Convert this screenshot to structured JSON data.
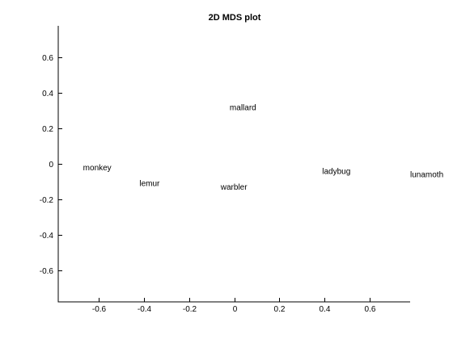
{
  "chart_data": {
    "type": "scatter",
    "title": "2D MDS plot",
    "xlabel": "",
    "ylabel": "",
    "xlim": [
      -0.78,
      0.78
    ],
    "ylim": [
      -0.78,
      0.78
    ],
    "xticks": [
      -0.6,
      -0.4,
      -0.2,
      0,
      0.2,
      0.4,
      0.6
    ],
    "yticks": [
      -0.6,
      -0.4,
      -0.2,
      0,
      0.2,
      0.4,
      0.6
    ],
    "xtick_labels": [
      "-0.6",
      "-0.4",
      "-0.2",
      "0",
      "0.2",
      "0.4",
      "0.6"
    ],
    "ytick_labels": [
      "-0.6",
      "-0.4",
      "-0.2",
      "0",
      "0.2",
      "0.4",
      "0.6"
    ],
    "grid": false,
    "points": [
      {
        "label": "monkey",
        "x": -0.67,
        "y": -0.02
      },
      {
        "label": "lemur",
        "x": -0.42,
        "y": -0.11
      },
      {
        "label": "mallard",
        "x": -0.02,
        "y": 0.32
      },
      {
        "label": "warbler",
        "x": -0.06,
        "y": -0.13
      },
      {
        "label": "ladybug",
        "x": 0.39,
        "y": -0.04
      },
      {
        "label": "lunamoth",
        "x": 0.78,
        "y": -0.06
      }
    ]
  }
}
